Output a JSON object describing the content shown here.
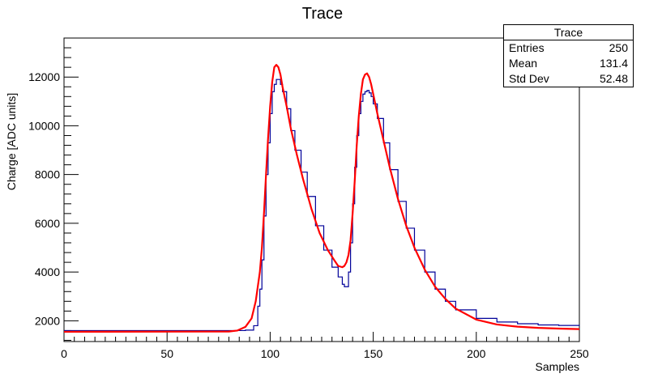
{
  "chart_data": {
    "type": "line",
    "title": "Trace",
    "xlabel": "Samples",
    "ylabel": "Charge [ADC units]",
    "xlim": [
      0,
      250
    ],
    "ylim": [
      1150,
      13600
    ],
    "x_ticks": [
      0,
      50,
      100,
      150,
      200,
      250
    ],
    "y_ticks": [
      2000,
      4000,
      6000,
      8000,
      10000,
      12000
    ],
    "x_tick_labels": [
      "0",
      "50",
      "100",
      "150",
      "200",
      "250"
    ],
    "y_tick_labels": [
      "2000",
      "4000",
      "6000",
      "8000",
      "10000",
      "12000"
    ],
    "grid": false,
    "legend": "none",
    "series": [
      {
        "kind": "histogram",
        "color": "#000099",
        "x": [
          0,
          80,
          84,
          88,
          92,
          94,
          95,
          96,
          97,
          98,
          99,
          100,
          101,
          102,
          103,
          104,
          105,
          106,
          108,
          110,
          112,
          115,
          118,
          122,
          126,
          130,
          133,
          135,
          136,
          137,
          138,
          139,
          140,
          141,
          142,
          143,
          144,
          145,
          146,
          147,
          148,
          149,
          150,
          152,
          155,
          158,
          162,
          166,
          170,
          175,
          180,
          185,
          190,
          200,
          210,
          220,
          230,
          240,
          250
        ],
        "y": [
          1600,
          1600,
          1600,
          1620,
          1800,
          2600,
          3300,
          4500,
          6300,
          8000,
          9300,
          10500,
          11400,
          11700,
          11900,
          11900,
          11700,
          11400,
          10700,
          9800,
          9000,
          8100,
          7100,
          5900,
          4900,
          4200,
          3800,
          3500,
          3400,
          3400,
          4000,
          5200,
          6800,
          8300,
          9600,
          10500,
          11000,
          11300,
          11400,
          11450,
          11350,
          11200,
          10900,
          10300,
          9300,
          8200,
          6900,
          5800,
          4900,
          4000,
          3300,
          2800,
          2450,
          2100,
          1950,
          1880,
          1830,
          1810,
          1800
        ]
      },
      {
        "kind": "fit",
        "color": "#ff0000",
        "x": [
          0,
          80,
          84,
          88,
          91,
          93,
          95,
          96,
          97,
          98,
          99,
          100,
          101,
          102,
          103,
          104,
          105,
          106,
          108,
          110,
          113,
          116,
          120,
          124,
          128,
          131,
          133,
          135,
          136,
          137,
          138,
          139,
          140,
          141,
          142,
          143,
          144,
          145,
          146,
          147,
          148,
          149,
          150,
          152,
          155,
          158,
          162,
          166,
          170,
          175,
          180,
          185,
          190,
          200,
          210,
          220,
          230,
          240,
          250
        ],
        "y": [
          1550,
          1560,
          1600,
          1750,
          2100,
          2800,
          4000,
          5000,
          6400,
          8000,
          9500,
          10800,
          11800,
          12400,
          12500,
          12400,
          12100,
          11600,
          10800,
          9900,
          8800,
          7800,
          6600,
          5600,
          4900,
          4500,
          4250,
          4200,
          4250,
          4400,
          4700,
          5300,
          6400,
          7700,
          9200,
          10400,
          11300,
          11900,
          12100,
          12150,
          12000,
          11700,
          11300,
          10500,
          9400,
          8300,
          7000,
          5900,
          5000,
          4100,
          3400,
          2900,
          2500,
          2050,
          1850,
          1760,
          1710,
          1680,
          1660
        ]
      }
    ]
  },
  "stats_box": {
    "title": "Trace",
    "rows": [
      {
        "label": "Entries",
        "value": "250"
      },
      {
        "label": "Mean",
        "value": "131.4"
      },
      {
        "label": "Std Dev",
        "value": "52.48"
      }
    ]
  }
}
